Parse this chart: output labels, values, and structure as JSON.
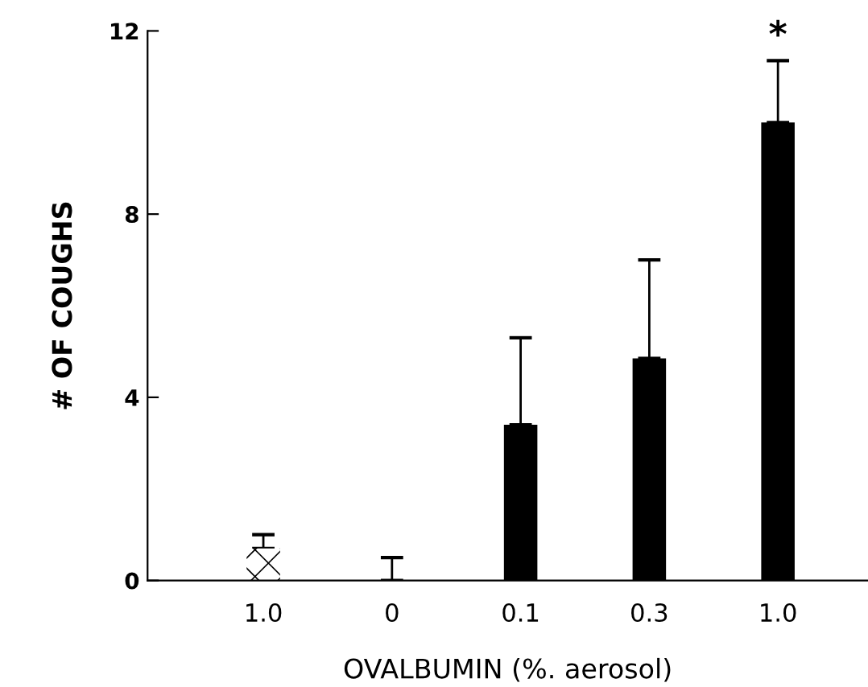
{
  "chart_data": {
    "type": "bar",
    "xlabel": "OVALBUMIN (%. aerosol)",
    "ylabel": "# OF COUGHS",
    "categories": [
      "1.0",
      "0",
      "0.1",
      "0.3",
      "1.0"
    ],
    "values": [
      0.7,
      0,
      3.4,
      4.85,
      10.0
    ],
    "colors": [
      "#ffffff",
      "#000000",
      "#000000",
      "#000000",
      "#000000"
    ],
    "errors": [
      [
        0.7,
        1.0
      ],
      [
        0,
        0.5
      ],
      [
        3.4,
        5.3
      ],
      [
        4.85,
        7.0
      ],
      [
        10.0,
        11.35
      ]
    ],
    "annotations": [
      "*"
    ],
    "ylim": [
      0,
      12
    ],
    "yticks": [
      0,
      4,
      8,
      12
    ],
    "grid": false,
    "legend": false
  }
}
